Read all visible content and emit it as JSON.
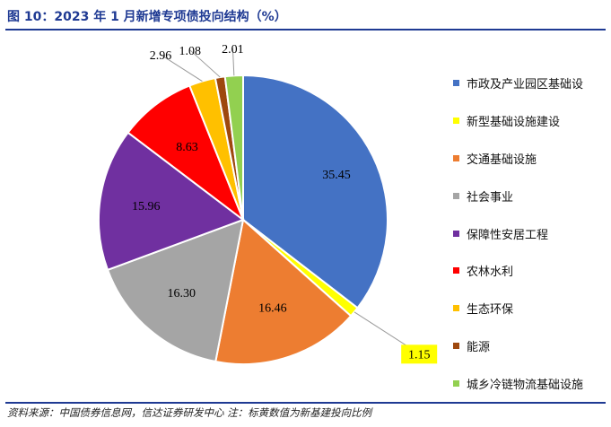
{
  "title": "图 10：2023 年 1 月新增专项债投向结构（%）",
  "source": "资料来源：中国债券信息网，信达证券研发中心 注：标黄数值为新基建投向比例",
  "chart_data": {
    "type": "pie",
    "categories": [
      "市政及产业园区基础设",
      "新型基础设施建设",
      "交通基础设施",
      "社会事业",
      "保障性安居工程",
      "农林水利",
      "生态环保",
      "能源",
      "城乡冷链物流基础设施"
    ],
    "values": [
      35.45,
      1.15,
      16.46,
      16.3,
      15.96,
      8.63,
      2.96,
      1.08,
      2.01
    ],
    "labels": [
      "35.45",
      "1.15",
      "16.46",
      "16.30",
      "15.96",
      "8.63",
      "2.96",
      "1.08",
      "2.01"
    ],
    "colors": [
      "#4472c4",
      "#ffff00",
      "#ed7d31",
      "#a5a5a5",
      "#7030a0",
      "#ff0000",
      "#ffc000",
      "#9e480e",
      "#92d050"
    ],
    "highlight_label_color": "#ffff00",
    "highlighted": [
      1
    ],
    "legend_position": "right"
  }
}
